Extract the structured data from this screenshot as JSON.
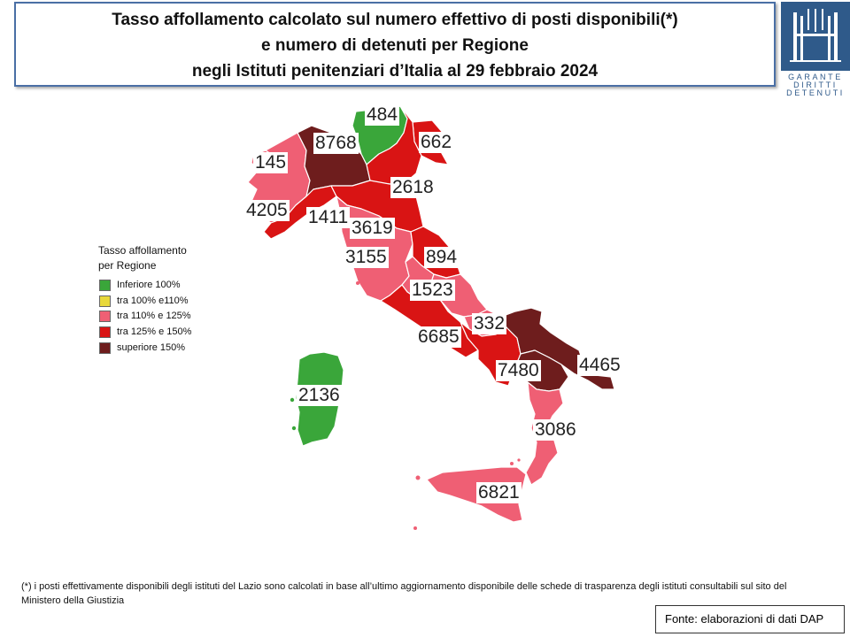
{
  "title": {
    "line1": "Tasso affollamento calcolato sul numero effettivo di posti disponibili(*)",
    "line2": "e numero di detenuti per Regione",
    "line3": "negli Istituti penitenziari d’Italia al 29 febbraio 2024"
  },
  "logo": {
    "line1": "GARANTE",
    "line2": "DIRITTI",
    "line3": "DETENUTI",
    "color": "#2f5a8a"
  },
  "legend": {
    "title_line1": "Tasso affollamento",
    "title_line2": "per Regione",
    "items": [
      {
        "label": "Inferiore 100%",
        "color": "#3aa63a"
      },
      {
        "label": "tra 100% e110%",
        "color": "#e8d83a"
      },
      {
        "label": "tra 110% e 125%",
        "color": "#ef5f74"
      },
      {
        "label": "tra 125% e 150%",
        "color": "#d91414"
      },
      {
        "label": "superiore 150%",
        "color": "#6e1d1d"
      }
    ]
  },
  "regions": [
    {
      "value": "484",
      "color": "#3aa63a"
    },
    {
      "value": "8768",
      "color": "#6e1d1d"
    },
    {
      "value": "662",
      "color": "#d91414"
    },
    {
      "value": "145",
      "color": "#ef5f74"
    },
    {
      "value": "2618",
      "color": "#d91414"
    },
    {
      "value": "4205",
      "color": "#ef5f74"
    },
    {
      "value": "1411",
      "color": "#d91414"
    },
    {
      "value": "3619",
      "color": "#d91414"
    },
    {
      "value": "3155",
      "color": "#ef5f74"
    },
    {
      "value": "894",
      "color": "#d91414"
    },
    {
      "value": "1523",
      "color": "#d91414"
    },
    {
      "value": "332",
      "color": "#ef5f74"
    },
    {
      "value": "6685",
      "color": "#d91414"
    },
    {
      "value": "4465",
      "color": "#6e1d1d"
    },
    {
      "value": "7480",
      "color": "#6e1d1d"
    },
    {
      "value": "2136",
      "color": "#3aa63a"
    },
    {
      "value": "3086",
      "color": "#ef5f74"
    },
    {
      "value": "6821",
      "color": "#ef5f74"
    }
  ],
  "footnote": "(*) i posti effettivamente disponibili  degli istituti del Lazio sono calcolati in base all’ultimo aggiornamento disponibile  delle schede di trasparenza degli istituti consultabili sul sito del Ministero della Giustizia",
  "source": "Fonte: elaborazioni di dati DAP"
}
